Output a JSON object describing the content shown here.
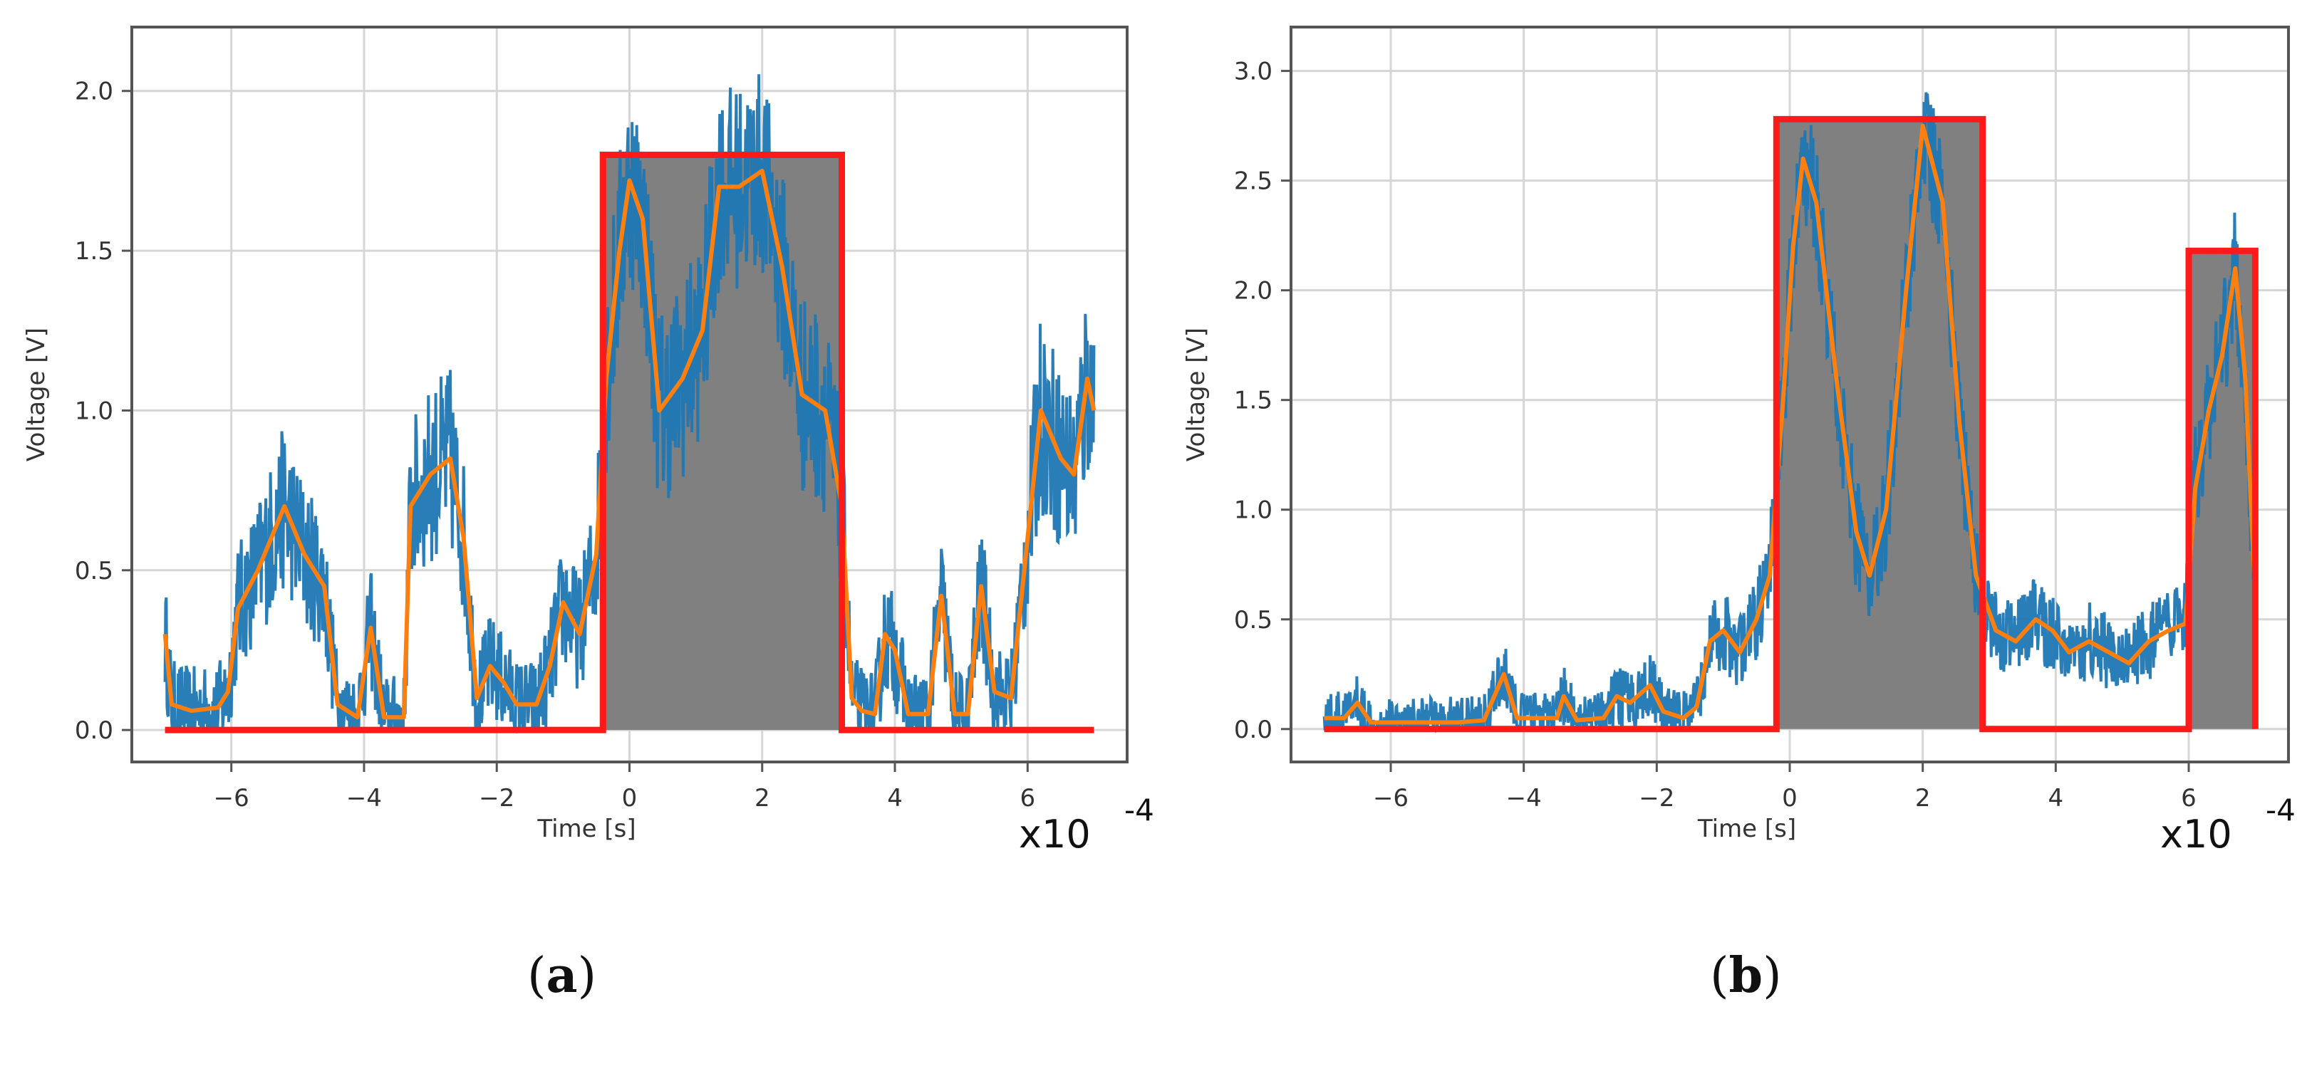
{
  "chart_data": [
    {
      "type": "line",
      "caption": "a",
      "xlabel": "Time [s]",
      "ylabel": "Voltage [V]",
      "x_multiplier_base": "x10",
      "x_multiplier_exp": "-4",
      "xlim": [
        -7.5,
        7.5
      ],
      "ylim": [
        -0.1,
        2.2
      ],
      "xticks": [
        -6,
        -4,
        -2,
        0,
        2,
        4,
        6
      ],
      "xtick_labels": [
        "−6",
        "−4",
        "−2",
        "0",
        "2",
        "4",
        "6"
      ],
      "yticks": [
        0.0,
        0.5,
        1.0,
        1.5,
        2.0
      ],
      "ytick_labels": [
        "0.0",
        "0.5",
        "1.0",
        "1.5",
        "2.0"
      ],
      "grid": true,
      "colors": {
        "raw": "#1f77b4",
        "smooth": "#ff7f0e",
        "pulse": "#ff1a1a",
        "fill": "#808080"
      },
      "pulse": [
        [
          -7,
          0
        ],
        [
          -0.4,
          0
        ],
        [
          -0.4,
          1.8
        ],
        [
          3.2,
          1.8
        ],
        [
          3.2,
          0
        ],
        [
          7,
          0
        ]
      ],
      "smoothed": [
        [
          -7,
          0.3
        ],
        [
          -6.9,
          0.08
        ],
        [
          -6.6,
          0.06
        ],
        [
          -6.2,
          0.07
        ],
        [
          -6.05,
          0.12
        ],
        [
          -5.9,
          0.38
        ],
        [
          -5.6,
          0.5
        ],
        [
          -5.2,
          0.7
        ],
        [
          -4.9,
          0.55
        ],
        [
          -4.6,
          0.45
        ],
        [
          -4.4,
          0.08
        ],
        [
          -4.1,
          0.04
        ],
        [
          -3.9,
          0.32
        ],
        [
          -3.7,
          0.04
        ],
        [
          -3.4,
          0.04
        ],
        [
          -3.3,
          0.7
        ],
        [
          -3.0,
          0.8
        ],
        [
          -2.7,
          0.85
        ],
        [
          -2.5,
          0.6
        ],
        [
          -2.3,
          0.1
        ],
        [
          -2.1,
          0.2
        ],
        [
          -1.9,
          0.15
        ],
        [
          -1.7,
          0.08
        ],
        [
          -1.4,
          0.08
        ],
        [
          -1.2,
          0.2
        ],
        [
          -1.0,
          0.4
        ],
        [
          -0.75,
          0.3
        ],
        [
          -0.5,
          0.55
        ],
        [
          -0.35,
          1.1
        ],
        [
          -0.15,
          1.5
        ],
        [
          0,
          1.72
        ],
        [
          0.2,
          1.6
        ],
        [
          0.45,
          1.0
        ],
        [
          0.8,
          1.1
        ],
        [
          1.1,
          1.25
        ],
        [
          1.35,
          1.7
        ],
        [
          1.65,
          1.7
        ],
        [
          2.0,
          1.75
        ],
        [
          2.3,
          1.45
        ],
        [
          2.6,
          1.05
        ],
        [
          2.95,
          1.0
        ],
        [
          3.2,
          0.7
        ],
        [
          3.35,
          0.1
        ],
        [
          3.5,
          0.06
        ],
        [
          3.7,
          0.05
        ],
        [
          3.85,
          0.3
        ],
        [
          4.0,
          0.25
        ],
        [
          4.2,
          0.05
        ],
        [
          4.5,
          0.05
        ],
        [
          4.7,
          0.42
        ],
        [
          4.9,
          0.05
        ],
        [
          5.1,
          0.05
        ],
        [
          5.3,
          0.45
        ],
        [
          5.5,
          0.12
        ],
        [
          5.75,
          0.1
        ],
        [
          5.95,
          0.5
        ],
        [
          6.2,
          1.0
        ],
        [
          6.5,
          0.85
        ],
        [
          6.7,
          0.8
        ],
        [
          6.9,
          1.1
        ],
        [
          7.0,
          1.0
        ]
      ]
    },
    {
      "type": "line",
      "caption": "b",
      "xlabel": "Time [s]",
      "ylabel": "Voltage [V]",
      "x_multiplier_base": "x10",
      "x_multiplier_exp": "-4",
      "xlim": [
        -7.5,
        7.5
      ],
      "ylim": [
        -0.15,
        3.2
      ],
      "xticks": [
        -6,
        -4,
        -2,
        0,
        2,
        4,
        6
      ],
      "xtick_labels": [
        "−6",
        "−4",
        "−2",
        "0",
        "2",
        "4",
        "6"
      ],
      "yticks": [
        0.0,
        0.5,
        1.0,
        1.5,
        2.0,
        2.5,
        3.0
      ],
      "ytick_labels": [
        "0.0",
        "0.5",
        "1.0",
        "1.5",
        "2.0",
        "2.5",
        "3.0"
      ],
      "grid": true,
      "colors": {
        "raw": "#1f77b4",
        "smooth": "#ff7f0e",
        "pulse": "#ff1a1a",
        "fill": "#808080"
      },
      "pulse": [
        [
          -7,
          0
        ],
        [
          -0.2,
          0
        ],
        [
          -0.2,
          2.78
        ],
        [
          2.9,
          2.78
        ],
        [
          2.9,
          0
        ],
        [
          6,
          0
        ],
        [
          6,
          2.18
        ],
        [
          7,
          2.18
        ],
        [
          7,
          0
        ]
      ],
      "smoothed": [
        [
          -7,
          0.05
        ],
        [
          -6.7,
          0.05
        ],
        [
          -6.5,
          0.12
        ],
        [
          -6.3,
          0.03
        ],
        [
          -5,
          0.03
        ],
        [
          -4.6,
          0.04
        ],
        [
          -4.3,
          0.25
        ],
        [
          -4.1,
          0.05
        ],
        [
          -3.5,
          0.05
        ],
        [
          -3.4,
          0.15
        ],
        [
          -3.2,
          0.04
        ],
        [
          -2.8,
          0.05
        ],
        [
          -2.6,
          0.15
        ],
        [
          -2.4,
          0.12
        ],
        [
          -2.1,
          0.2
        ],
        [
          -1.9,
          0.08
        ],
        [
          -1.6,
          0.05
        ],
        [
          -1.4,
          0.1
        ],
        [
          -1.2,
          0.4
        ],
        [
          -1.0,
          0.45
        ],
        [
          -0.75,
          0.35
        ],
        [
          -0.5,
          0.5
        ],
        [
          -0.3,
          0.7
        ],
        [
          -0.1,
          1.5
        ],
        [
          0.05,
          2.2
        ],
        [
          0.2,
          2.6
        ],
        [
          0.4,
          2.4
        ],
        [
          0.7,
          1.6
        ],
        [
          1.0,
          0.9
        ],
        [
          1.2,
          0.7
        ],
        [
          1.45,
          1.0
        ],
        [
          1.75,
          2.0
        ],
        [
          2.0,
          2.75
        ],
        [
          2.3,
          2.4
        ],
        [
          2.55,
          1.4
        ],
        [
          2.8,
          0.7
        ],
        [
          3.1,
          0.45
        ],
        [
          3.4,
          0.4
        ],
        [
          3.7,
          0.5
        ],
        [
          3.95,
          0.45
        ],
        [
          4.2,
          0.35
        ],
        [
          4.5,
          0.4
        ],
        [
          4.8,
          0.35
        ],
        [
          5.1,
          0.3
        ],
        [
          5.4,
          0.4
        ],
        [
          5.7,
          0.45
        ],
        [
          5.95,
          0.48
        ],
        [
          6.1,
          1.1
        ],
        [
          6.3,
          1.45
        ],
        [
          6.5,
          1.7
        ],
        [
          6.7,
          2.1
        ],
        [
          6.85,
          1.6
        ],
        [
          7.0,
          0.6
        ]
      ]
    }
  ]
}
